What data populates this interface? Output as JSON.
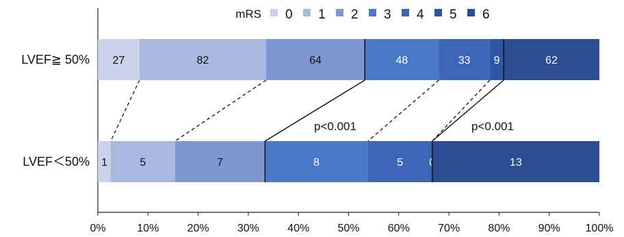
{
  "chart_data": {
    "type": "bar",
    "orientation": "horizontal",
    "stacked": "percent",
    "categories": [
      "LVEF≧ 50%",
      "LVEF＜50%"
    ],
    "legend_title": "mRS",
    "legend_position": "top",
    "series": [
      {
        "name": "0",
        "color": "#c9d2ea",
        "values": [
          27,
          1
        ]
      },
      {
        "name": "1",
        "color": "#a9b8df",
        "values": [
          82,
          5
        ]
      },
      {
        "name": "2",
        "color": "#7f97cf",
        "values": [
          64,
          7
        ]
      },
      {
        "name": "3",
        "color": "#4a78c9",
        "values": [
          48,
          8
        ]
      },
      {
        "name": "4",
        "color": "#3d66b6",
        "values": [
          33,
          5
        ]
      },
      {
        "name": "5",
        "color": "#2e57a6",
        "values": [
          9,
          0
        ]
      },
      {
        "name": "6",
        "color": "#2c4d92",
        "values": [
          62,
          13
        ]
      }
    ],
    "xlim": [
      0,
      100
    ],
    "xticks": [
      "0%",
      "10%",
      "20%",
      "30%",
      "40%",
      "50%",
      "60%",
      "70%",
      "80%",
      "90%",
      "100%"
    ],
    "annotations": [
      "p<0.001",
      "p<0.001"
    ]
  }
}
